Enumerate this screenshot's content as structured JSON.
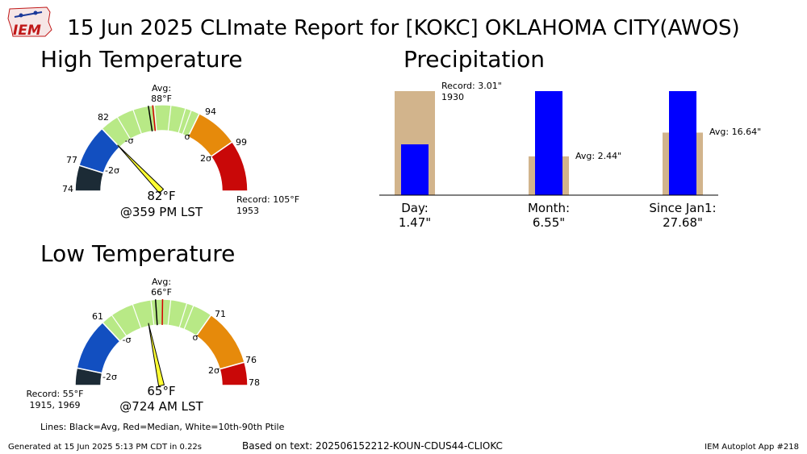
{
  "title": "15 Jun 2025 CLImate Report for [KOKC] OKLAHOMA CITY(AWOS)",
  "logo_text": "IEM",
  "high": {
    "section_title": "High Temperature",
    "avg_line1": "Avg:",
    "avg_line2": "88°F",
    "value_label": "82°F",
    "time_label": "@359 PM LST",
    "record_line1": "Record: 105°F",
    "record_line2": "1953",
    "tick_labels": [
      "74",
      "77",
      "82",
      "94",
      "99"
    ],
    "sigma_labels": [
      "-2σ",
      "-σ",
      "σ",
      "2σ"
    ],
    "gauge": {
      "min": 74,
      "max": 105,
      "bands": [
        {
          "from": 74,
          "to": 77,
          "color": "#1c2b36"
        },
        {
          "from": 77,
          "to": 82,
          "color": "#124fc0"
        },
        {
          "from": 82,
          "to": 94,
          "color": "#b8e986"
        },
        {
          "from": 94,
          "to": 99,
          "color": "#e68a0b"
        },
        {
          "from": 99,
          "to": 105,
          "color": "#c90808"
        }
      ],
      "ptile_lines": [
        84.2,
        86.2,
        88.7,
        90.6,
        92.3,
        93.0
      ],
      "avg": 88,
      "median": 88.5,
      "value": 82
    }
  },
  "low": {
    "section_title": "Low Temperature",
    "avg_line1": "Avg:",
    "avg_line2": "66°F",
    "value_label": "65°F",
    "time_label": "@724 AM LST",
    "record_line1": "Record: 55°F",
    "record_line2": "1915, 1969",
    "tick_labels": [
      "61",
      "71",
      "76",
      "78"
    ],
    "sigma_labels": [
      "-2σ",
      "-σ",
      "σ",
      "2σ"
    ],
    "gauge": {
      "min": 55,
      "max": 78,
      "bands": [
        {
          "from": 55,
          "to": 56.5,
          "color": "#1c2b36"
        },
        {
          "from": 56.5,
          "to": 61,
          "color": "#124fc0"
        },
        {
          "from": 61,
          "to": 71,
          "color": "#b8e986"
        },
        {
          "from": 71,
          "to": 76,
          "color": "#e68a0b"
        },
        {
          "from": 76,
          "to": 78,
          "color": "#c90808"
        }
      ],
      "ptile_lines": [
        62.0,
        64.0,
        65.6,
        67.3,
        68.7,
        69.3
      ],
      "avg": 66,
      "median": 66.6,
      "value": 65
    }
  },
  "precip": {
    "section_title": "Precipitation",
    "record_label_line1": "Record: 3.01\"",
    "record_label_line2": "1930",
    "month_avg_label": "Avg: 2.44\"",
    "ytd_avg_label": "Avg: 16.64\"",
    "legend": "Lines: Black=Avg, Red=Median, White=10th-90th Ptile"
  },
  "chart_data": [
    {
      "type": "bar",
      "title": "Precipitation",
      "categories": [
        "Day:\n1.47\"",
        "Month:\n6.55\"",
        "Since Jan1:\n27.68\""
      ],
      "series": [
        {
          "values": [
            3.01,
            2.44,
            16.64
          ],
          "color": "#d2b48c"
        },
        {
          "values": [
            1.47,
            6.55,
            27.68
          ],
          "color": "#0000ff"
        }
      ],
      "category_text": [
        {
          "line1": "Day:",
          "line2": "1.47\""
        },
        {
          "line1": "Month:",
          "line2": "6.55\""
        },
        {
          "line1": "Since Jan1:",
          "line2": "27.68\""
        }
      ],
      "axis_max": [
        3.01,
        6.55,
        27.68
      ],
      "grid": false
    }
  ],
  "footer": {
    "generated": "Generated at 15 Jun 2025 5:13 PM CDT in 0.22s",
    "based_on": "Based on text: 202506152212-KOUN-CDUS44-CLIOKC",
    "app": "IEM Autoplot App #218"
  }
}
